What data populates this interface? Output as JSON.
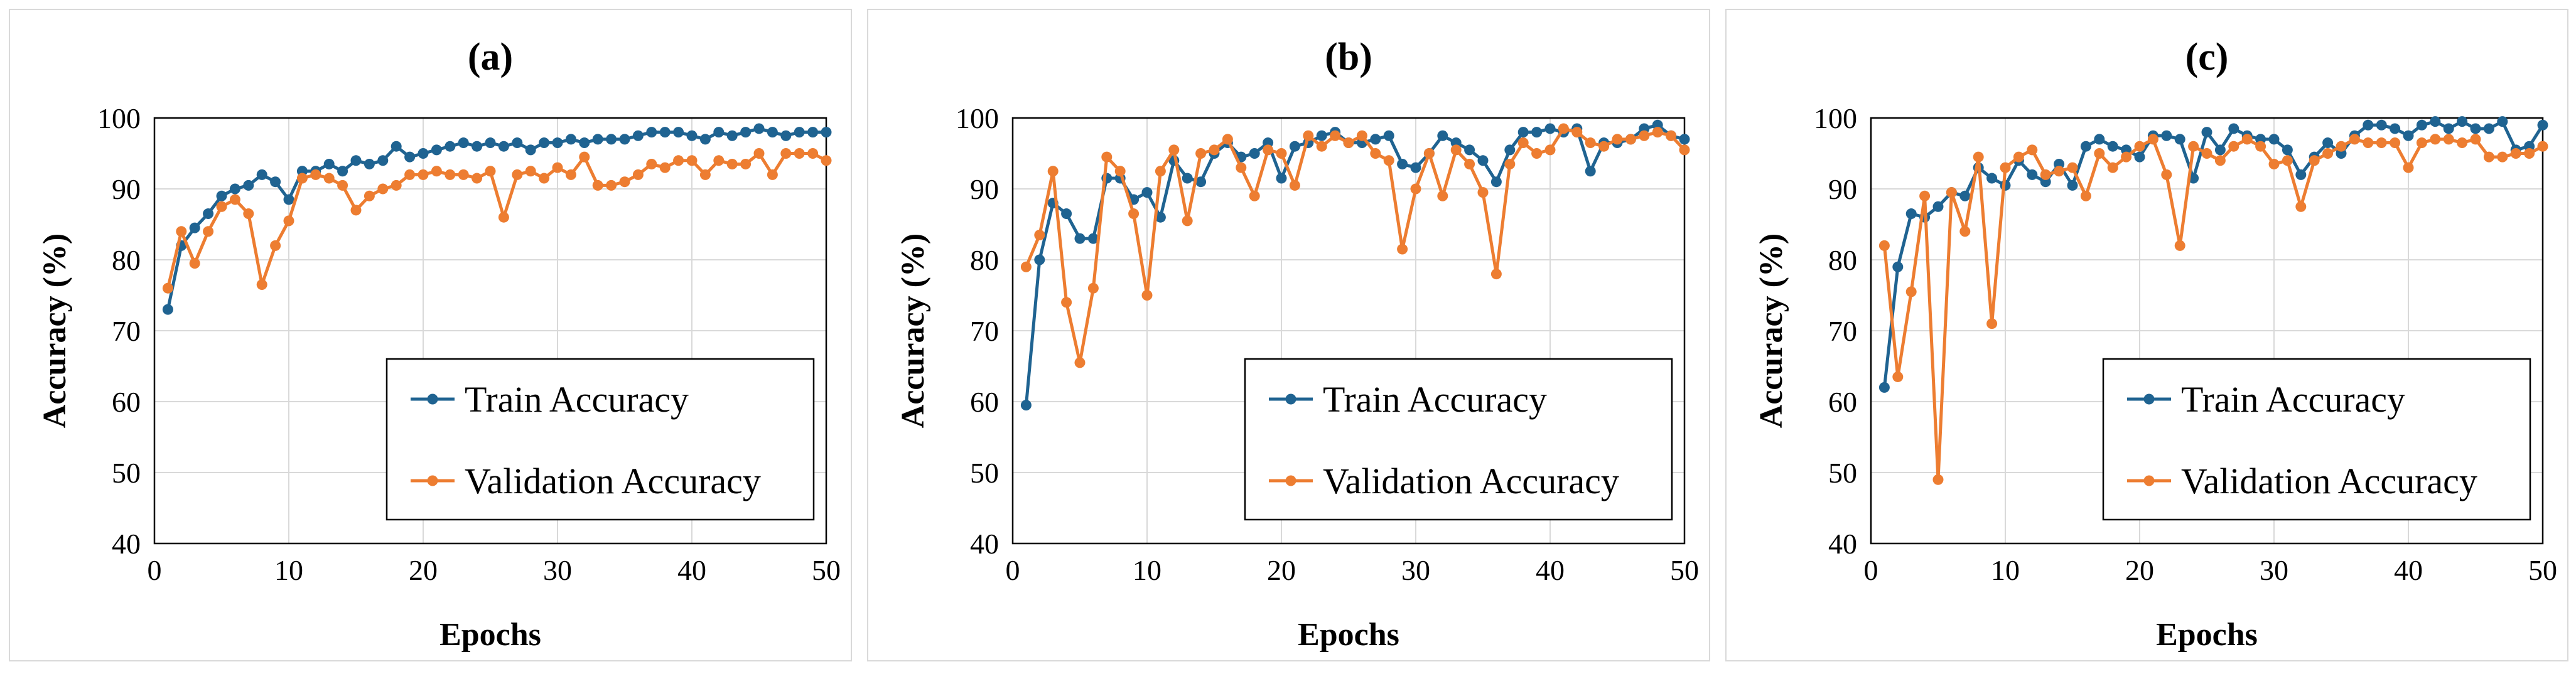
{
  "colors": {
    "train": "#1f6391",
    "validation": "#ed7d31",
    "grid": "#d9d9d9",
    "frame": "#000000"
  },
  "chart_data": [
    {
      "type": "line",
      "title": "(a)",
      "xlabel": "Epochs",
      "ylabel": "Accuracy (%)",
      "xlim": [
        0,
        50
      ],
      "ylim": [
        40,
        100
      ],
      "xticks": [
        "0",
        "10",
        "20",
        "30",
        "40",
        "50"
      ],
      "yticks": [
        "40",
        "50",
        "60",
        "70",
        "80",
        "90",
        "100"
      ],
      "grid": true,
      "legend_position": "bottom-right",
      "x": [
        1,
        2,
        3,
        4,
        5,
        6,
        7,
        8,
        9,
        10,
        11,
        12,
        13,
        14,
        15,
        16,
        17,
        18,
        19,
        20,
        21,
        22,
        23,
        24,
        25,
        26,
        27,
        28,
        29,
        30,
        31,
        32,
        33,
        34,
        35,
        36,
        37,
        38,
        39,
        40,
        41,
        42,
        43,
        44,
        45,
        46,
        47,
        48,
        49,
        50
      ],
      "series": [
        {
          "name": "Train Accuracy",
          "values": [
            73.0,
            82.0,
            84.5,
            86.5,
            89.0,
            90.0,
            90.5,
            92.0,
            91.0,
            88.5,
            92.5,
            92.5,
            93.5,
            92.5,
            94.0,
            93.5,
            94.0,
            96.0,
            94.5,
            95.0,
            95.5,
            96.0,
            96.5,
            96.0,
            96.5,
            96.0,
            96.5,
            95.5,
            96.5,
            96.5,
            97.0,
            96.5,
            97.0,
            97.0,
            97.0,
            97.5,
            98.0,
            98.0,
            98.0,
            97.5,
            97.0,
            98.0,
            97.5,
            98.0,
            98.5,
            98.0,
            97.5,
            98.0,
            98.0,
            98.0
          ]
        },
        {
          "name": "Validation Accuracy",
          "values": [
            76.0,
            84.0,
            79.5,
            84.0,
            87.5,
            88.5,
            86.5,
            76.5,
            82.0,
            85.5,
            91.5,
            92.0,
            91.5,
            90.5,
            87.0,
            89.0,
            90.0,
            90.5,
            92.0,
            92.0,
            92.5,
            92.0,
            92.0,
            91.5,
            92.5,
            86.0,
            92.0,
            92.5,
            91.5,
            93.0,
            92.0,
            94.5,
            90.5,
            90.5,
            91.0,
            92.0,
            93.5,
            93.0,
            94.0,
            94.0,
            92.0,
            94.0,
            93.5,
            93.5,
            95.0,
            92.0,
            95.0,
            95.0,
            95.0,
            94.0
          ]
        }
      ]
    },
    {
      "type": "line",
      "title": "(b)",
      "xlabel": "Epochs",
      "ylabel": "Accuracy (%)",
      "xlim": [
        0,
        50
      ],
      "ylim": [
        40,
        100
      ],
      "xticks": [
        "0",
        "10",
        "20",
        "30",
        "40",
        "50"
      ],
      "yticks": [
        "40",
        "50",
        "60",
        "70",
        "80",
        "90",
        "100"
      ],
      "grid": true,
      "legend_position": "bottom-right",
      "x": [
        1,
        2,
        3,
        4,
        5,
        6,
        7,
        8,
        9,
        10,
        11,
        12,
        13,
        14,
        15,
        16,
        17,
        18,
        19,
        20,
        21,
        22,
        23,
        24,
        25,
        26,
        27,
        28,
        29,
        30,
        31,
        32,
        33,
        34,
        35,
        36,
        37,
        38,
        39,
        40,
        41,
        42,
        43,
        44,
        45,
        46,
        47,
        48,
        49,
        50
      ],
      "series": [
        {
          "name": "Train Accuracy",
          "values": [
            59.5,
            80.0,
            88.0,
            86.5,
            83.0,
            83.0,
            91.5,
            91.5,
            88.5,
            89.5,
            86.0,
            94.0,
            91.5,
            91.0,
            95.0,
            96.5,
            94.5,
            95.0,
            96.5,
            91.5,
            96.0,
            96.5,
            97.5,
            98.0,
            96.5,
            96.5,
            97.0,
            97.5,
            93.5,
            93.0,
            95.0,
            97.5,
            96.5,
            95.5,
            94.0,
            91.0,
            95.5,
            98.0,
            98.0,
            98.5,
            98.0,
            98.5,
            92.5,
            96.5,
            96.5,
            97.0,
            98.5,
            99.0,
            97.5,
            97.0
          ]
        },
        {
          "name": "Validation Accuracy",
          "values": [
            79.0,
            83.5,
            92.5,
            74.0,
            65.5,
            76.0,
            94.5,
            92.5,
            86.5,
            75.0,
            92.5,
            95.5,
            85.5,
            95.0,
            95.5,
            97.0,
            93.0,
            89.0,
            95.5,
            95.0,
            90.5,
            97.5,
            96.0,
            97.5,
            96.5,
            97.5,
            95.0,
            94.0,
            81.5,
            90.0,
            95.0,
            89.0,
            95.5,
            93.5,
            89.5,
            78.0,
            93.5,
            96.5,
            95.0,
            95.5,
            98.5,
            98.0,
            96.5,
            96.0,
            97.0,
            97.0,
            97.5,
            98.0,
            97.5,
            95.5
          ]
        }
      ]
    },
    {
      "type": "line",
      "title": "(c)",
      "xlabel": "Epochs",
      "ylabel": "Accuracy (%)",
      "xlim": [
        0,
        50
      ],
      "ylim": [
        40,
        100
      ],
      "xticks": [
        "0",
        "10",
        "20",
        "30",
        "40",
        "50"
      ],
      "yticks": [
        "40",
        "50",
        "60",
        "70",
        "80",
        "90",
        "100"
      ],
      "grid": true,
      "legend_position": "bottom-right",
      "x": [
        1,
        2,
        3,
        4,
        5,
        6,
        7,
        8,
        9,
        10,
        11,
        12,
        13,
        14,
        15,
        16,
        17,
        18,
        19,
        20,
        21,
        22,
        23,
        24,
        25,
        26,
        27,
        28,
        29,
        30,
        31,
        32,
        33,
        34,
        35,
        36,
        37,
        38,
        39,
        40,
        41,
        42,
        43,
        44,
        45,
        46,
        47,
        48,
        49,
        50
      ],
      "series": [
        {
          "name": "Train Accuracy",
          "values": [
            62.0,
            79.0,
            86.5,
            86.0,
            87.5,
            89.5,
            89.0,
            93.0,
            91.5,
            90.5,
            94.0,
            92.0,
            91.0,
            93.5,
            90.5,
            96.0,
            97.0,
            96.0,
            95.5,
            94.5,
            97.5,
            97.5,
            97.0,
            91.5,
            98.0,
            95.5,
            98.5,
            97.5,
            97.0,
            97.0,
            95.5,
            92.0,
            94.5,
            96.5,
            95.0,
            97.5,
            99.0,
            99.0,
            98.5,
            97.5,
            99.0,
            99.5,
            98.5,
            99.5,
            98.5,
            98.5,
            99.5,
            95.5,
            96.0,
            99.0
          ]
        },
        {
          "name": "Validation Accuracy",
          "values": [
            82.0,
            63.5,
            75.5,
            89.0,
            49.0,
            89.5,
            84.0,
            94.5,
            71.0,
            93.0,
            94.5,
            95.5,
            92.0,
            92.5,
            93.0,
            89.0,
            95.0,
            93.0,
            94.5,
            96.0,
            97.0,
            92.0,
            82.0,
            96.0,
            95.0,
            94.0,
            96.0,
            97.0,
            96.0,
            93.5,
            94.0,
            87.5,
            94.0,
            95.0,
            96.0,
            97.0,
            96.5,
            96.5,
            96.5,
            93.0,
            96.5,
            97.0,
            97.0,
            96.5,
            97.0,
            94.5,
            94.5,
            95.0,
            95.0,
            96.0
          ]
        }
      ]
    }
  ]
}
